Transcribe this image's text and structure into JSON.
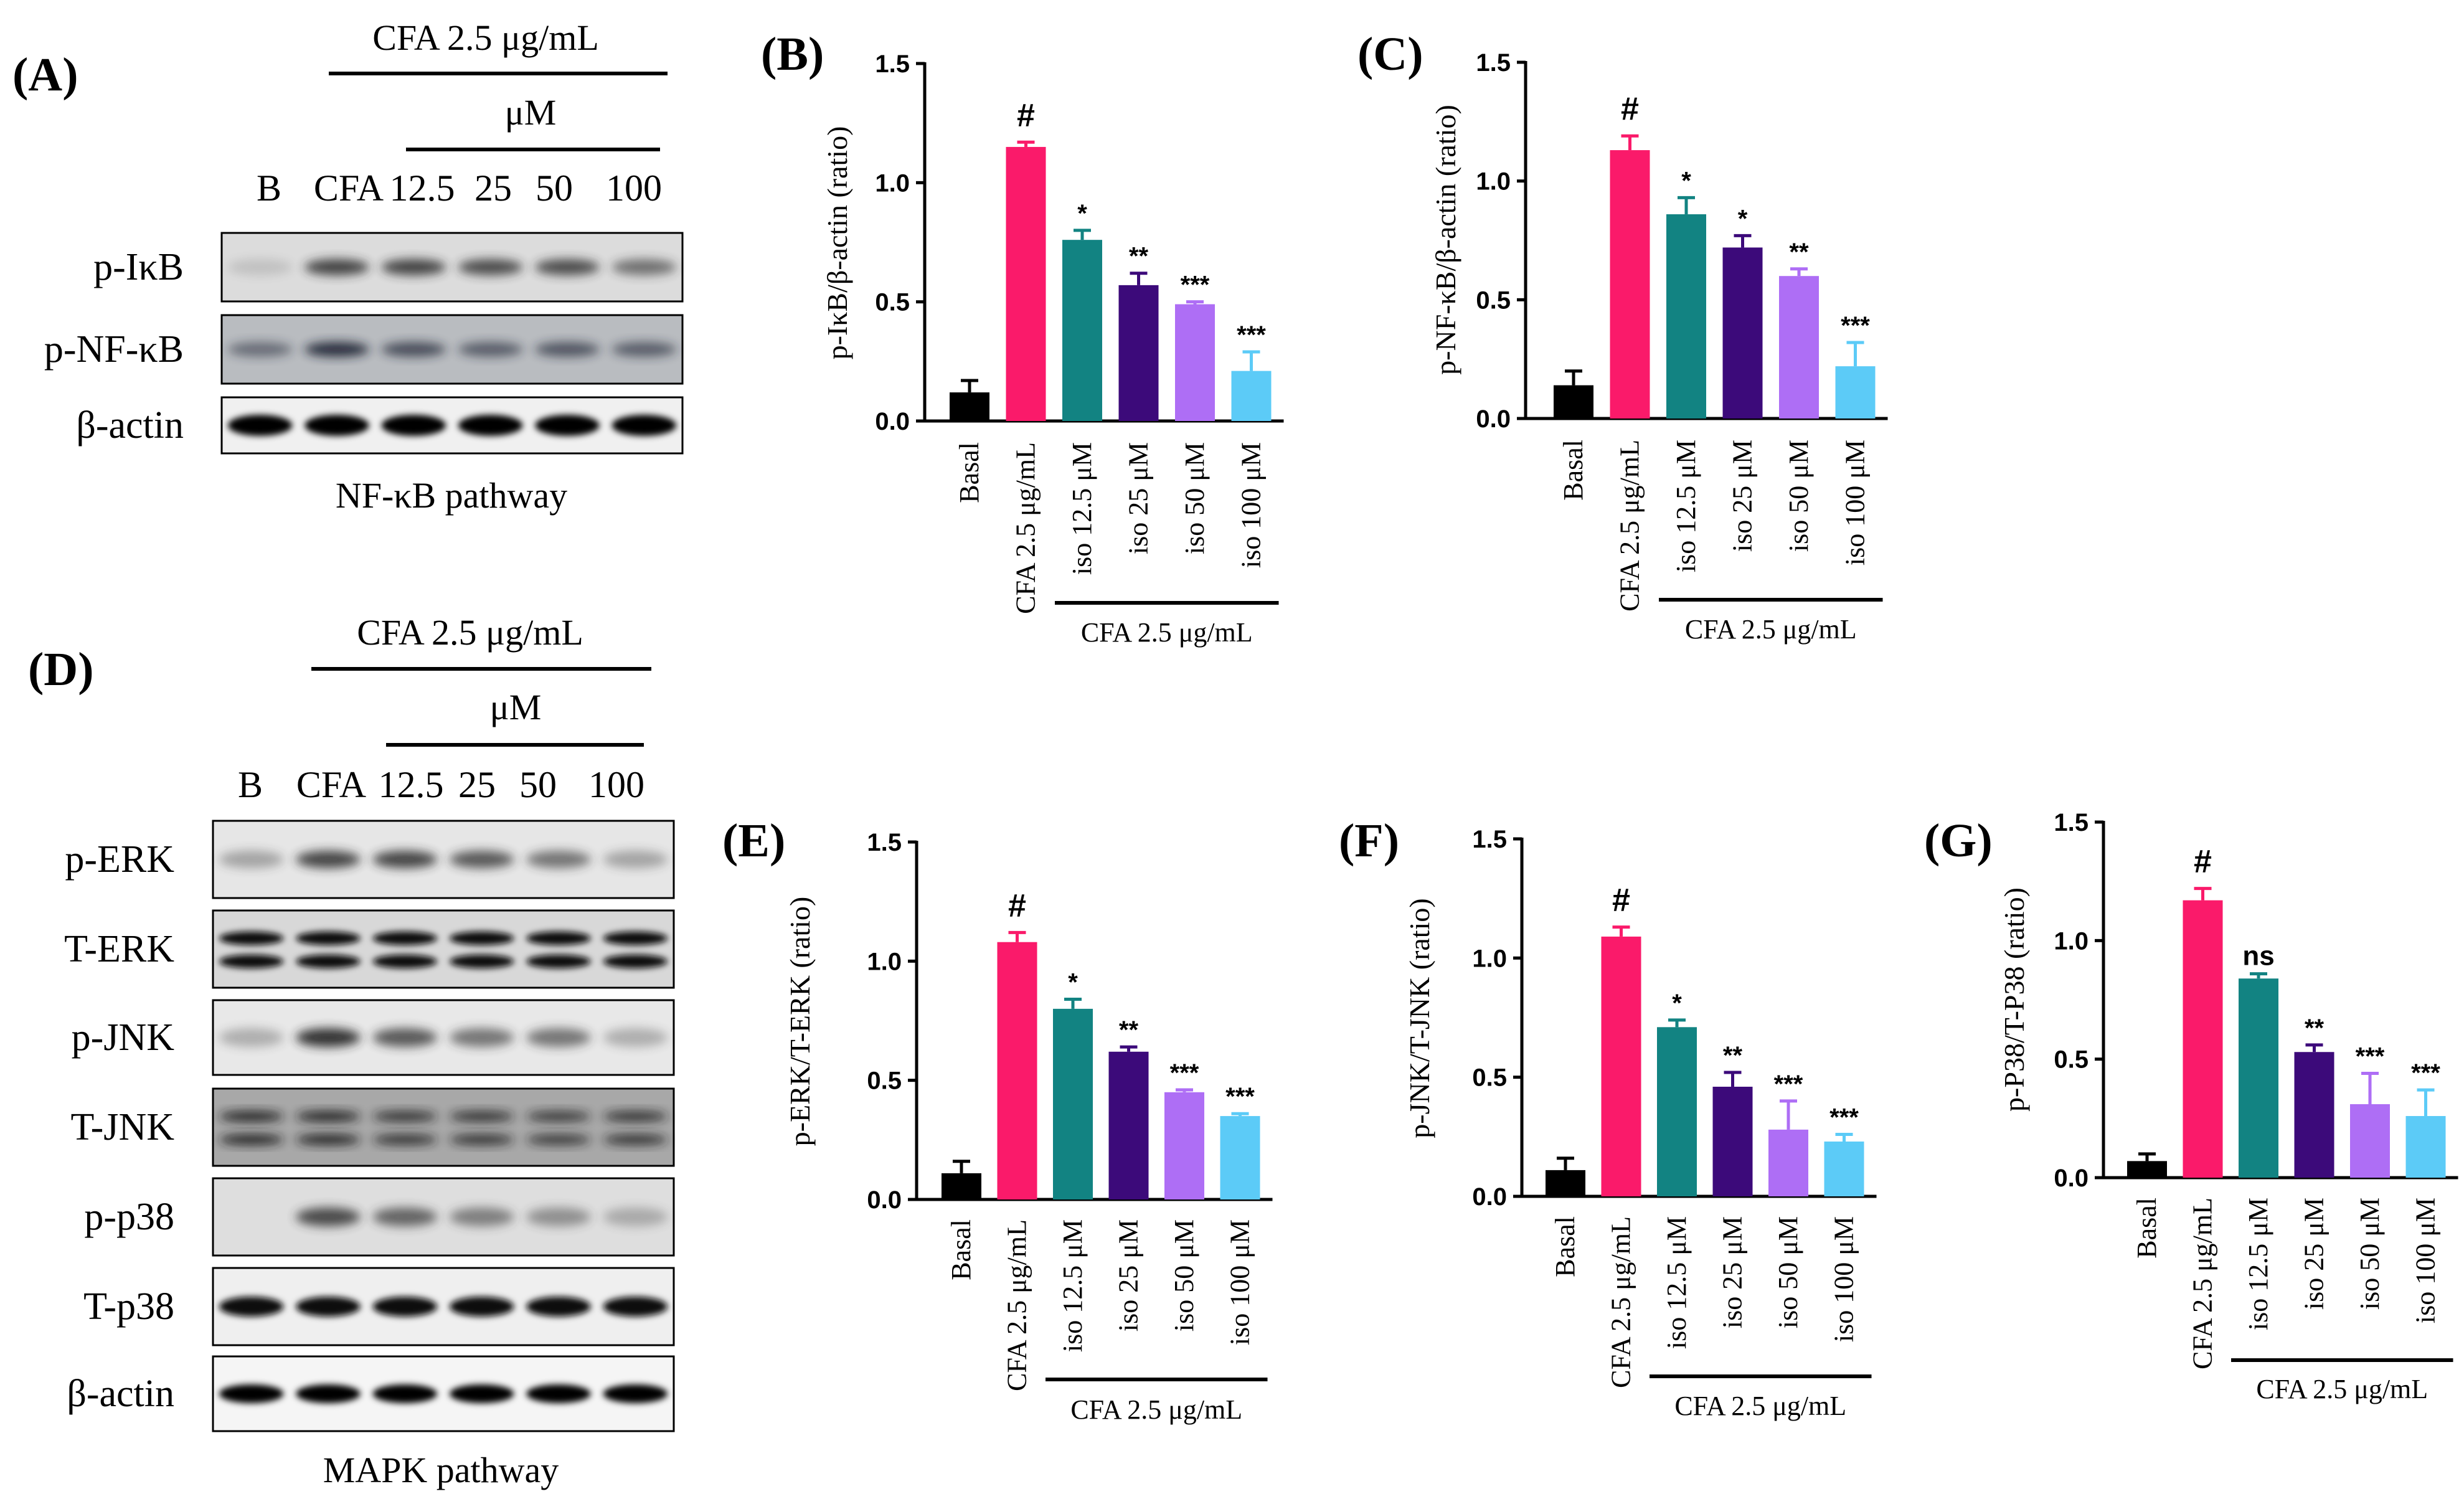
{
  "colors": {
    "basal": "#000000",
    "cfa": "#fa1a6a",
    "iso12": "#128382",
    "iso25": "#3c0a7a",
    "iso50": "#ae6ef5",
    "iso100": "#5ccbf7"
  },
  "blots": [
    {
      "panel": "(A)",
      "treatment_header": "CFA 2.5 μg/mL",
      "unit_header": "μM",
      "lanes": [
        "B",
        "CFA",
        "12.5",
        "25",
        "50",
        "100"
      ],
      "rows": [
        "p-IκB",
        "p-NF-κB",
        "β-actin"
      ],
      "caption": "NF-κB pathway"
    },
    {
      "panel": "(D)",
      "treatment_header": "CFA 2.5 μg/mL",
      "unit_header": "μM",
      "lanes": [
        "B",
        "CFA",
        "12.5",
        "25",
        "50",
        "100"
      ],
      "rows": [
        "p-ERK",
        "T-ERK",
        "p-JNK",
        "T-JNK",
        "p-p38",
        "T-p38",
        "β-actin"
      ],
      "caption": "MAPK pathway"
    }
  ],
  "chart_data": [
    {
      "panel": "(B)",
      "type": "bar",
      "ylabel": "p-IκB/β-actin (ratio)",
      "ylim": [
        0,
        1.5
      ],
      "yticks": [
        "0.0",
        "0.5",
        "1.0",
        "1.5"
      ],
      "categories": [
        "Basal",
        "CFA 2.5 μg/mL",
        "iso 12.5 μM",
        "iso 25 μM",
        "iso 50 μM",
        "iso 100 μM"
      ],
      "values": [
        0.12,
        1.15,
        0.76,
        0.57,
        0.49,
        0.21
      ],
      "errors": [
        0.05,
        0.02,
        0.04,
        0.05,
        0.01,
        0.08
      ],
      "significance": [
        "",
        "#",
        "*",
        "**",
        "***",
        "***"
      ],
      "group_label": "CFA 2.5 μg/mL"
    },
    {
      "panel": "(C)",
      "type": "bar",
      "ylabel": "p-NF-κB/β-actin (ratio)",
      "ylim": [
        0,
        1.5
      ],
      "yticks": [
        "0.0",
        "0.5",
        "1.0",
        "1.5"
      ],
      "categories": [
        "Basal",
        "CFA 2.5 μg/mL",
        "iso 12.5 μM",
        "iso 25 μM",
        "iso 50 μM",
        "iso 100 μM"
      ],
      "values": [
        0.14,
        1.13,
        0.86,
        0.72,
        0.6,
        0.22
      ],
      "errors": [
        0.06,
        0.06,
        0.07,
        0.05,
        0.03,
        0.1
      ],
      "significance": [
        "",
        "#",
        "*",
        "*",
        "**",
        "***"
      ],
      "group_label": "CFA 2.5 μg/mL"
    },
    {
      "panel": "(E)",
      "type": "bar",
      "ylabel": "p-ERK/T-ERK (ratio)",
      "ylim": [
        0,
        1.5
      ],
      "yticks": [
        "0.0",
        "0.5",
        "1.0",
        "1.5"
      ],
      "categories": [
        "Basal",
        "CFA 2.5 μg/mL",
        "iso 12.5 μM",
        "iso 25 μM",
        "iso 50 μM",
        "iso 100 μM"
      ],
      "values": [
        0.11,
        1.08,
        0.8,
        0.62,
        0.45,
        0.35
      ],
      "errors": [
        0.05,
        0.04,
        0.04,
        0.02,
        0.01,
        0.01
      ],
      "significance": [
        "",
        "#",
        "*",
        "**",
        "***",
        "***"
      ],
      "group_label": "CFA 2.5 μg/mL"
    },
    {
      "panel": "(F)",
      "type": "bar",
      "ylabel": "p-JNK/T-JNK (ratio)",
      "ylim": [
        0,
        1.5
      ],
      "yticks": [
        "0.0",
        "0.5",
        "1.0",
        "1.5"
      ],
      "categories": [
        "Basal",
        "CFA 2.5 μg/mL",
        "iso 12.5 μM",
        "iso 25 μM",
        "iso 50 μM",
        "iso 100 μM"
      ],
      "values": [
        0.11,
        1.09,
        0.71,
        0.46,
        0.28,
        0.23
      ],
      "errors": [
        0.05,
        0.04,
        0.03,
        0.06,
        0.12,
        0.03
      ],
      "significance": [
        "",
        "#",
        "*",
        "**",
        "***",
        "***"
      ],
      "group_label": "CFA 2.5 μg/mL"
    },
    {
      "panel": "(G)",
      "type": "bar",
      "ylabel": "p-P38/T-P38 (ratio)",
      "ylim": [
        0,
        1.5
      ],
      "yticks": [
        "0.0",
        "0.5",
        "1.0",
        "1.5"
      ],
      "categories": [
        "Basal",
        "CFA 2.5 μg/mL",
        "iso 12.5 μM",
        "iso 25 μM",
        "iso 50 μM",
        "iso 100 μM"
      ],
      "values": [
        0.07,
        1.17,
        0.84,
        0.53,
        0.31,
        0.26
      ],
      "errors": [
        0.03,
        0.05,
        0.02,
        0.03,
        0.13,
        0.11
      ],
      "significance": [
        "",
        "#",
        "ns",
        "**",
        "***",
        "***"
      ],
      "group_label": "CFA 2.5 μg/mL"
    }
  ]
}
